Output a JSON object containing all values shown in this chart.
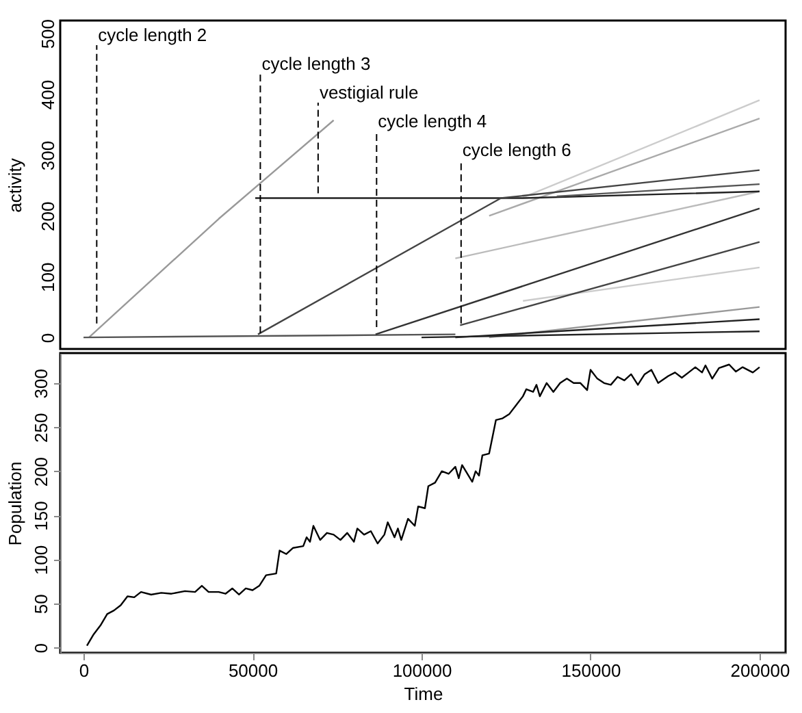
{
  "chart_data": [
    {
      "type": "line",
      "ylabel": "activity",
      "xlim": [
        -6900,
        207700
      ],
      "ylim": [
        -19,
        521
      ],
      "xticks": [
        0,
        50000,
        100000,
        150000,
        200000
      ],
      "yticks": [
        0,
        100,
        200,
        300,
        400,
        500
      ],
      "tick_labels": "y",
      "grid": false,
      "line_style": "solid",
      "annotations": [
        {
          "text": "cycle length 2",
          "x": 3900,
          "y": 23
        },
        {
          "text": "cycle length 3",
          "x": 52300,
          "y": 7
        },
        {
          "text": "vestigial rule",
          "x": 69400,
          "y": 237
        },
        {
          "text": "cycle length 4",
          "x": 86700,
          "y": 17
        },
        {
          "text": "cycle length 6",
          "x": 111700,
          "y": 23
        }
      ],
      "series": [
        {
          "color": "#999999",
          "x": [
            1600,
            40000,
            74000
          ],
          "values": [
            0,
            195,
            357
          ]
        },
        {
          "color": "#cccccc",
          "x": [
            130000,
            200000
          ],
          "values": [
            230,
            390
          ]
        },
        {
          "color": "#aaaaaa",
          "x": [
            120000,
            200000
          ],
          "values": [
            200,
            360
          ]
        },
        {
          "color": "#bbbbbb",
          "x": [
            110000,
            200000
          ],
          "values": [
            130,
            240
          ]
        },
        {
          "color": "#cccccc",
          "x": [
            130000,
            200000
          ],
          "values": [
            60,
            115
          ]
        },
        {
          "color": "#999999",
          "x": [
            120000,
            200000
          ],
          "values": [
            0,
            50
          ]
        },
        {
          "color": "#555555",
          "x": [
            0,
            110000
          ],
          "values": [
            0,
            5
          ]
        },
        {
          "color": "#222222",
          "x": [
            50800,
            130000,
            200000
          ],
          "values": [
            229,
            229,
            240
          ]
        },
        {
          "color": "#555555",
          "x": [
            140000,
            200000
          ],
          "values": [
            232,
            252
          ]
        },
        {
          "color": "#444444",
          "x": [
            51600,
            123500,
            200000
          ],
          "values": [
            5,
            229,
            275
          ]
        },
        {
          "color": "#333333",
          "x": [
            86400,
            200000
          ],
          "values": [
            5,
            212
          ]
        },
        {
          "color": "#444444",
          "x": [
            111400,
            200000
          ],
          "values": [
            20,
            157
          ]
        },
        {
          "color": "#222222",
          "x": [
            110000,
            200000
          ],
          "values": [
            0,
            30
          ]
        },
        {
          "color": "#222222",
          "x": [
            100000,
            200000
          ],
          "values": [
            0,
            10
          ]
        }
      ]
    },
    {
      "type": "line",
      "xlabel": "Time",
      "ylabel": "Population",
      "xlim": [
        -6900,
        207700
      ],
      "ylim": [
        -6,
        334
      ],
      "xticks": [
        0,
        50000,
        100000,
        150000,
        200000
      ],
      "yticks": [
        0,
        50,
        100,
        150,
        200,
        250,
        300
      ],
      "grid": false,
      "line_style": "solid",
      "series": [
        {
          "color": "#000000",
          "x": [
            1000,
            3000,
            5000,
            7000,
            9000,
            11000,
            13000,
            15000,
            17000,
            20000,
            23000,
            26000,
            30000,
            33000,
            35000,
            37000,
            40000,
            42000,
            44000,
            46000,
            48000,
            50000,
            52000,
            54000,
            57000,
            58000,
            60000,
            62000,
            65000,
            66000,
            67000,
            68000,
            70000,
            72000,
            74000,
            76000,
            78000,
            80000,
            81000,
            83000,
            85000,
            87000,
            89000,
            90000,
            92000,
            93000,
            94000,
            96000,
            98000,
            99000,
            101000,
            102000,
            104000,
            106000,
            108000,
            110000,
            111000,
            112000,
            115000,
            116000,
            117000,
            118000,
            120000,
            122000,
            124000,
            126000,
            128000,
            130000,
            131000,
            133000,
            134000,
            135000,
            137000,
            139000,
            141000,
            143000,
            145000,
            147000,
            149000,
            150000,
            152000,
            154000,
            156000,
            158000,
            160000,
            162000,
            164000,
            166000,
            168000,
            170000,
            173000,
            175000,
            177000,
            179000,
            181000,
            183000,
            184000,
            186000,
            188000,
            191000,
            193000,
            195000,
            198000,
            200000
          ],
          "values": [
            2,
            15,
            25,
            38,
            42,
            48,
            58,
            57,
            63,
            60,
            62,
            61,
            64,
            63,
            70,
            63,
            63,
            61,
            67,
            60,
            67,
            65,
            70,
            82,
            84,
            110,
            106,
            113,
            115,
            125,
            120,
            138,
            122,
            130,
            128,
            122,
            130,
            120,
            135,
            128,
            132,
            118,
            128,
            142,
            125,
            135,
            122,
            146,
            138,
            160,
            158,
            183,
            187,
            200,
            197,
            205,
            192,
            207,
            188,
            200,
            195,
            218,
            220,
            258,
            260,
            265,
            275,
            285,
            293,
            290,
            298,
            285,
            300,
            290,
            300,
            305,
            300,
            300,
            292,
            315,
            305,
            300,
            298,
            307,
            303,
            310,
            298,
            310,
            315,
            300,
            308,
            312,
            306,
            312,
            318,
            312,
            320,
            305,
            317,
            321,
            313,
            318,
            312,
            318
          ]
        }
      ]
    }
  ]
}
